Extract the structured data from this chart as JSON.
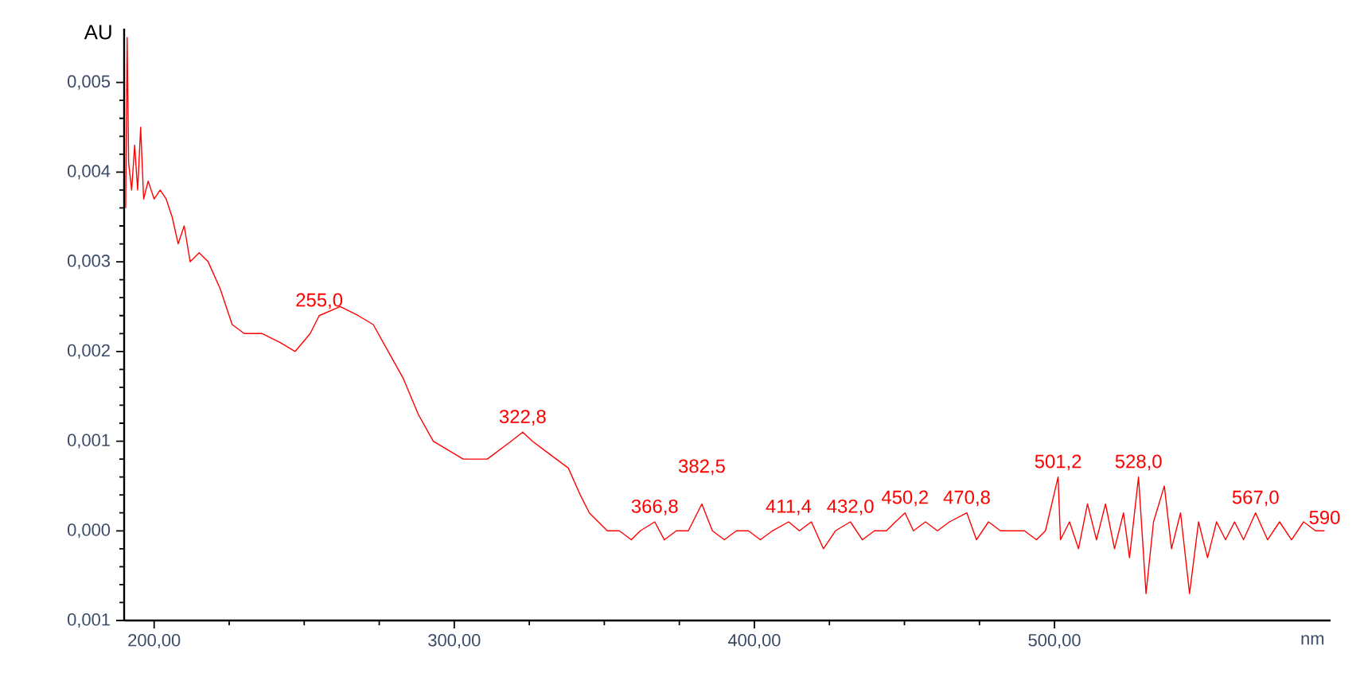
{
  "chart_data": {
    "type": "line",
    "xlabel": "nm",
    "ylabel": "AU",
    "x": [
      190.5,
      191,
      191.5,
      192.5,
      193.5,
      194.5,
      195.5,
      196.5,
      198,
      200,
      202,
      204,
      206,
      208,
      210,
      212,
      215,
      218,
      222,
      226,
      230,
      236,
      242,
      247,
      252,
      255.0,
      262,
      268,
      273,
      278,
      283,
      288,
      293,
      298,
      303,
      308,
      311,
      315,
      319,
      322.8,
      326,
      330,
      334,
      338,
      342,
      345,
      348,
      351,
      355,
      359,
      362,
      366.8,
      370,
      374,
      378,
      382.5,
      386,
      390,
      394,
      398,
      402,
      406,
      411.4,
      415,
      419,
      423,
      427,
      432.0,
      436,
      440,
      444,
      447,
      450.2,
      453,
      457,
      461,
      465,
      470.8,
      474,
      478,
      482,
      486,
      490,
      494,
      497,
      501.2,
      502,
      505,
      508,
      511,
      514,
      517,
      520,
      523,
      525,
      528.0,
      530.5,
      533,
      536.6,
      539,
      542,
      545,
      548,
      551,
      554,
      557,
      560,
      563,
      567.0,
      571,
      575,
      579,
      583,
      587,
      590
    ],
    "series": [
      {
        "color": "#ff0000",
        "values": [
          0.0036,
          0.0055,
          0.0041,
          0.0038,
          0.0043,
          0.0038,
          0.0045,
          0.0037,
          0.0039,
          0.0037,
          0.0038,
          0.0037,
          0.0035,
          0.0032,
          0.0034,
          0.003,
          0.0031,
          0.003,
          0.0027,
          0.0023,
          0.0022,
          0.0022,
          0.0021,
          0.002,
          0.0022,
          0.0024,
          0.0025,
          0.0024,
          0.0023,
          0.002,
          0.0017,
          0.0013,
          0.001,
          0.0009,
          0.0008,
          0.0008,
          0.0008,
          0.0009,
          0.001,
          0.0011,
          0.001,
          0.0009,
          0.0008,
          0.0007,
          0.0004,
          0.0002,
          0.0001,
          0.0,
          0.0,
          -0.0001,
          0.0,
          0.0001,
          -0.0001,
          0.0,
          0.0,
          0.0003,
          0.0,
          -0.0001,
          0.0,
          0.0,
          -0.0001,
          0.0,
          0.0001,
          0.0,
          0.0001,
          -0.0002,
          0.0,
          0.0001,
          -0.0001,
          0.0,
          0.0,
          0.0001,
          0.0002,
          0.0,
          0.0001,
          0.0,
          0.0001,
          0.0002,
          -0.0001,
          0.0001,
          0.0,
          0.0,
          0.0,
          -0.0001,
          0.0,
          0.0006,
          -0.0001,
          0.0001,
          -0.0002,
          0.0003,
          -0.0001,
          0.0003,
          -0.0002,
          0.0002,
          -0.0003,
          0.0006,
          -0.0007,
          0.0001,
          0.0005,
          -0.0002,
          0.0002,
          -0.0007,
          0.0001,
          -0.0003,
          0.0001,
          -0.0001,
          0.0001,
          -0.0001,
          0.0002,
          -0.0001,
          0.0001,
          -0.0001,
          0.0001,
          0.0,
          0.0
        ]
      }
    ],
    "xlim": [
      190,
      592
    ],
    "xticks": [
      {
        "value": 200,
        "label": "200,00"
      },
      {
        "value": 300,
        "label": "300,00"
      },
      {
        "value": 400,
        "label": "400,00"
      },
      {
        "value": 500,
        "label": "500,00"
      }
    ],
    "ylim": [
      -0.001,
      0.0056
    ],
    "yticks": [
      {
        "value": -0.001,
        "label": "0,001"
      },
      {
        "value": 0.0,
        "label": "0,000"
      },
      {
        "value": 0.001,
        "label": "0,001"
      },
      {
        "value": 0.002,
        "label": "0,002"
      },
      {
        "value": 0.003,
        "label": "0,003"
      },
      {
        "value": 0.004,
        "label": "0,004"
      },
      {
        "value": 0.005,
        "label": "0,005"
      }
    ],
    "grid": false,
    "marker": "none",
    "line_style": "solid",
    "annotations": [
      {
        "text": "255,0",
        "x": 255.0,
        "y": 0.0024
      },
      {
        "text": "322,8",
        "x": 322.8,
        "y": 0.0011
      },
      {
        "text": "366,8",
        "x": 366.8,
        "y": 0.0001
      },
      {
        "text": "382,5",
        "x": 382.5,
        "y": 0.0003
      },
      {
        "text": "411,4",
        "x": 411.4,
        "y": 0.0001
      },
      {
        "text": "432,0",
        "x": 432.0,
        "y": 0.0001
      },
      {
        "text": "450,2",
        "x": 450.2,
        "y": 0.0002
      },
      {
        "text": "470,8",
        "x": 470.8,
        "y": 0.0002
      },
      {
        "text": "501,2",
        "x": 501.2,
        "y": 0.0006
      },
      {
        "text": "528,0",
        "x": 528.0,
        "y": 0.0006
      },
      {
        "text": "567,0",
        "x": 567.0,
        "y": 0.0002
      },
      {
        "text": "590",
        "x": 590,
        "y": 0.0
      }
    ]
  }
}
